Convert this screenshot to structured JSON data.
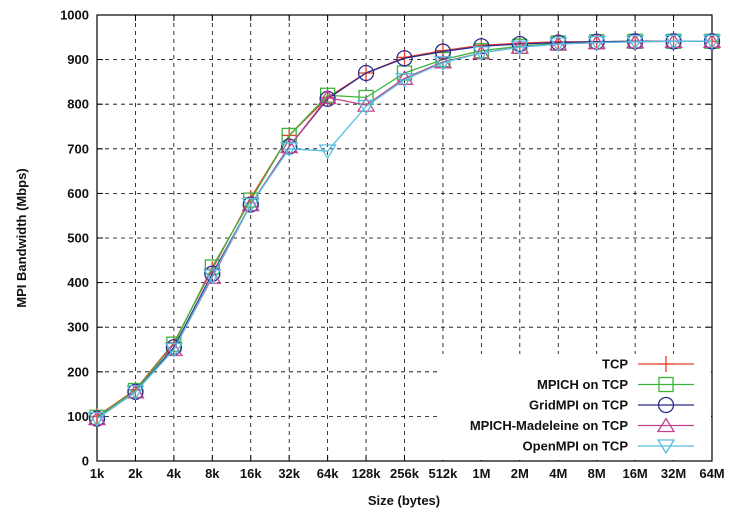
{
  "chart_data": {
    "type": "line",
    "xlabel": "Size (bytes)",
    "ylabel": "MPI Bandwidth (Mbps)",
    "ylim": [
      0,
      1000
    ],
    "yticks": [
      0,
      100,
      200,
      300,
      400,
      500,
      600,
      700,
      800,
      900,
      1000
    ],
    "categories": [
      "1k",
      "2k",
      "4k",
      "8k",
      "16k",
      "32k",
      "64k",
      "128k",
      "256k",
      "512k",
      "1M",
      "2M",
      "4M",
      "8M",
      "16M",
      "32M",
      "64M"
    ],
    "grid": true,
    "legend_position": "bottom-right",
    "series": [
      {
        "name": "TCP",
        "color": "#e8402a",
        "marker": "plus",
        "values": [
          100,
          160,
          265,
          430,
          590,
          730,
          815,
          870,
          905,
          920,
          932,
          937,
          940,
          940,
          941,
          941,
          941
        ]
      },
      {
        "name": "MPICH on TCP",
        "color": "#3cb43c",
        "marker": "square",
        "values": [
          98,
          158,
          262,
          435,
          585,
          730,
          820,
          815,
          870,
          900,
          920,
          930,
          937,
          940,
          941,
          941,
          941
        ]
      },
      {
        "name": "GridMPI on TCP",
        "color": "#2b2b8f",
        "marker": "circle",
        "values": [
          95,
          155,
          255,
          420,
          575,
          705,
          812,
          870,
          903,
          918,
          930,
          935,
          938,
          940,
          941,
          941,
          941
        ]
      },
      {
        "name": "MPICH-Madeleine on TCP",
        "color": "#c0448f",
        "marker": "triangle-up",
        "values": [
          95,
          155,
          250,
          412,
          575,
          705,
          815,
          798,
          858,
          895,
          915,
          928,
          935,
          938,
          940,
          941,
          941
        ]
      },
      {
        "name": "OpenMPI on TCP",
        "color": "#55bfe0",
        "marker": "triangle-down",
        "values": [
          95,
          155,
          250,
          415,
          575,
          700,
          695,
          795,
          855,
          893,
          915,
          928,
          935,
          938,
          940,
          941,
          941
        ]
      }
    ]
  }
}
